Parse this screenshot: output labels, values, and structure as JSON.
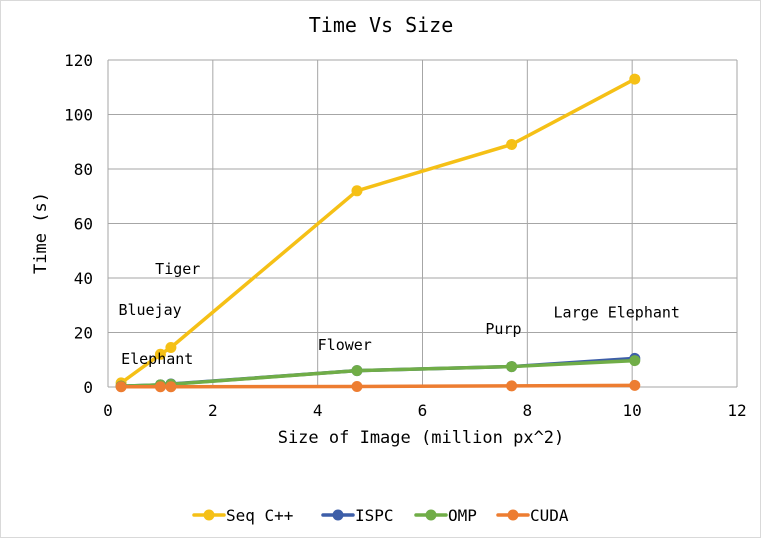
{
  "chart_data": {
    "type": "line",
    "title": "Time Vs Size",
    "xlabel": "Size of Image (million px^2)",
    "ylabel": "Time (s)",
    "xlim": [
      0,
      12
    ],
    "ylim": [
      0,
      120
    ],
    "xticks": [
      "0",
      "2",
      "4",
      "6",
      "8",
      "10",
      "12"
    ],
    "yticks": [
      "0",
      "20",
      "40",
      "60",
      "80",
      "100",
      "120"
    ],
    "grid": true,
    "legend_position": "bottom",
    "x": [
      0.25,
      1.0,
      1.2,
      4.75,
      7.7,
      10.05
    ],
    "series": [
      {
        "name": "Seq C++",
        "color": "#f5c016",
        "values": [
          1.5,
          12,
          14.5,
          72,
          89,
          113
        ]
      },
      {
        "name": "ISPC",
        "color": "#3d5ea8",
        "values": [
          0.3,
          0.8,
          1.1,
          6,
          7.5,
          10.5
        ]
      },
      {
        "name": "OMP",
        "color": "#70ad47",
        "values": [
          0.3,
          0.8,
          1.0,
          6,
          7.5,
          9.7
        ]
      },
      {
        "name": "CUDA",
        "color": "#ed7d31",
        "values": [
          0.1,
          0.1,
          0.1,
          0.2,
          0.4,
          0.6
        ]
      }
    ],
    "annotations": [
      {
        "text": "Elephant",
        "x": 0.25,
        "y": 8.5
      },
      {
        "text": "Bluejay",
        "x": 0.2,
        "y": 26.5
      },
      {
        "text": "Tiger",
        "x": 0.9,
        "y": 41.5
      },
      {
        "text": "Flower",
        "x": 4,
        "y": 13.5
      },
      {
        "text": "Purp",
        "x": 7.2,
        "y": 19.5
      },
      {
        "text": "Large Elephant",
        "x": 8.5,
        "y": 25.5
      }
    ]
  }
}
